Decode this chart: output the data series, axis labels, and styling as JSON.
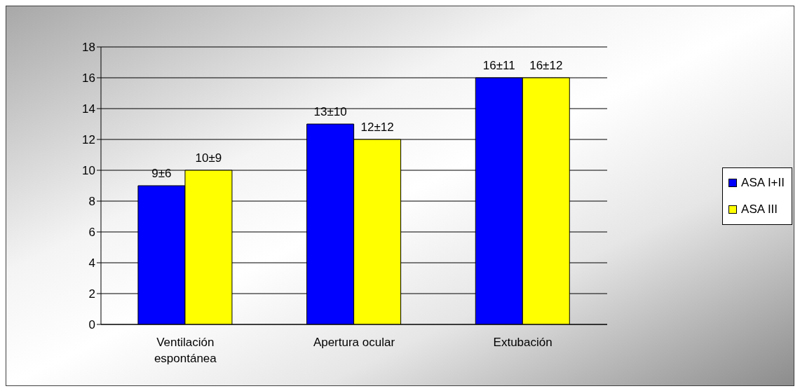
{
  "chart_data": {
    "type": "bar",
    "categories": [
      "Ventilación espontánea",
      "Apertura ocular",
      "Extubación"
    ],
    "series": [
      {
        "name": "ASA I+II",
        "color": "#0000ff",
        "values": [
          9,
          13,
          16
        ],
        "value_labels": [
          "9±6",
          "13±10",
          "16±11"
        ]
      },
      {
        "name": "ASA III",
        "color": "#ffff00",
        "values": [
          10,
          12,
          16
        ],
        "value_labels": [
          "10±9",
          "12±12",
          "16±12"
        ]
      }
    ],
    "ylim": [
      0,
      18
    ],
    "yticks": [
      0,
      2,
      4,
      6,
      8,
      10,
      12,
      14,
      16,
      18
    ],
    "grid": "y",
    "legend": "right"
  }
}
